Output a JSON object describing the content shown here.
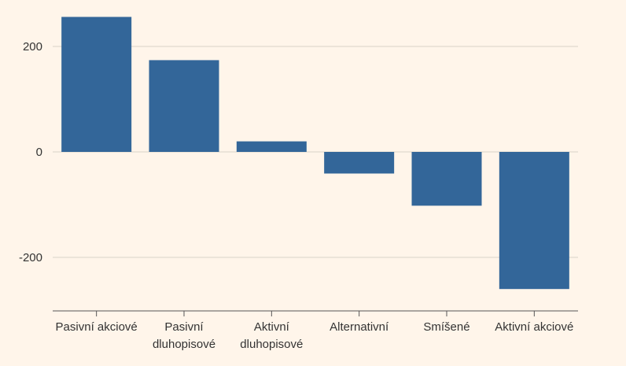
{
  "chart_data": {
    "type": "bar",
    "title": "",
    "xlabel": "",
    "ylabel": "",
    "categories": [
      [
        "Pasivní akciové"
      ],
      [
        "Pasivní",
        "dluhopisové"
      ],
      [
        "Aktivní",
        "dluhopisové"
      ],
      [
        "Alternativní"
      ],
      [
        "Smíšené"
      ],
      [
        "Aktivní akciové"
      ]
    ],
    "values": [
      256,
      174,
      20,
      -41,
      -102,
      -260
    ],
    "ylim": [
      -300,
      285
    ],
    "yticks": [
      -200,
      0,
      200
    ],
    "ytick_labels": [
      "-200",
      "0",
      "200"
    ],
    "grid": true,
    "legend": "none",
    "colors": {
      "bar": "#336699",
      "grid": "#d8d2c8",
      "axis": "#555555",
      "background": "#fff5ea"
    }
  }
}
